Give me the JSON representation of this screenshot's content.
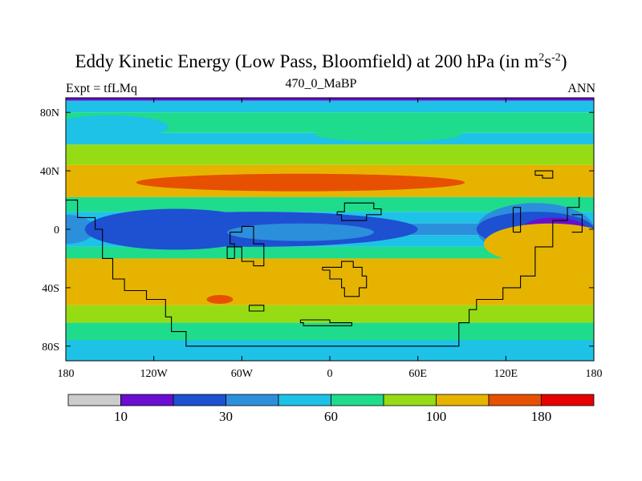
{
  "chart_data": {
    "type": "heatmap",
    "title_main": "Eddy Kinetic Energy (Low Pass, Bloomfield) at 200 hPa (in m",
    "title_sup1": "2",
    "title_mid": "s",
    "title_sup2": "-2",
    "title_end": ")",
    "left_string": "Expt = tfLMq",
    "center_string": "470_0_MaBP",
    "right_string": "ANN",
    "xlim": [
      -180,
      180
    ],
    "ylim": [
      -90,
      90
    ],
    "x_ticks": [
      {
        "value": -180,
        "label": "180"
      },
      {
        "value": -120,
        "label": "120W"
      },
      {
        "value": -60,
        "label": "60W"
      },
      {
        "value": 0,
        "label": "0"
      },
      {
        "value": 60,
        "label": "60E"
      },
      {
        "value": 120,
        "label": "120E"
      },
      {
        "value": 180,
        "label": "180"
      }
    ],
    "y_ticks": [
      {
        "value": 80,
        "label": "80N"
      },
      {
        "value": 40,
        "label": "40N"
      },
      {
        "value": 0,
        "label": "0"
      },
      {
        "value": -40,
        "label": "40S"
      },
      {
        "value": -80,
        "label": "80S"
      }
    ],
    "levels": [
      10,
      20,
      30,
      45,
      60,
      80,
      100,
      140,
      180
    ],
    "colorbar_colors": [
      "#cccccc",
      "#6a0ed2",
      "#1e50d2",
      "#2c8fdc",
      "#1ec2e6",
      "#1edc8c",
      "#96dc14",
      "#e6b400",
      "#e65000",
      "#e60000"
    ],
    "colorbar_labels": [
      {
        "after_level": 1,
        "label": "10"
      },
      {
        "after_level": 3,
        "label": "30"
      },
      {
        "after_level": 5,
        "label": "60"
      },
      {
        "after_level": 7,
        "label": "100"
      },
      {
        "after_level": 9,
        "label": "180"
      }
    ],
    "bands": [
      {
        "lat_from": 90,
        "lat_to": 88,
        "color_index": 1
      },
      {
        "lat_from": 88,
        "lat_to": 80,
        "color_index": 4
      },
      {
        "lat_from": 80,
        "lat_to": 66,
        "color_index": 5
      },
      {
        "lat_from": 66,
        "lat_to": 58,
        "color_index": 4
      },
      {
        "lat_from": 58,
        "lat_to": 44,
        "color_index": 6
      },
      {
        "lat_from": 44,
        "lat_to": 22,
        "color_index": 7
      },
      {
        "lat_from": 22,
        "lat_to": 12,
        "color_index": 5
      },
      {
        "lat_from": 12,
        "lat_to": 4,
        "color_index": 4
      },
      {
        "lat_from": 4,
        "lat_to": -4,
        "color_index": 3
      },
      {
        "lat_from": -4,
        "lat_to": -12,
        "color_index": 4
      },
      {
        "lat_from": -12,
        "lat_to": -20,
        "color_index": 5
      },
      {
        "lat_from": -20,
        "lat_to": -52,
        "color_index": 7
      },
      {
        "lat_from": -52,
        "lat_to": -64,
        "color_index": 6
      },
      {
        "lat_from": -64,
        "lat_to": -76,
        "color_index": 5
      },
      {
        "lat_from": -76,
        "lat_to": -90,
        "color_index": 4
      }
    ],
    "blobs": [
      {
        "lon": -180,
        "lat": 0,
        "rlon": 20,
        "rlat": 10,
        "color_index": 3
      },
      {
        "lon": -50,
        "lat": 0,
        "rlon": 110,
        "rlat": 12,
        "color_index": 2
      },
      {
        "lon": -105,
        "lat": 0,
        "rlon": 62,
        "rlat": 14,
        "color_index": 2
      },
      {
        "lon": -20,
        "lat": -2,
        "rlon": 50,
        "rlat": 6,
        "color_index": 3
      },
      {
        "lon": 140,
        "lat": 0,
        "rlon": 40,
        "rlat": 18,
        "color_index": 3
      },
      {
        "lon": 140,
        "lat": 0,
        "rlon": 40,
        "rlat": 12,
        "color_index": 2
      },
      {
        "lon": 153,
        "lat": 0,
        "rlon": 22,
        "rlat": 8,
        "color_index": 1
      },
      {
        "lon": -20,
        "lat": 32,
        "rlon": 112,
        "rlat": 6,
        "color_index": 8
      },
      {
        "lon": -75,
        "lat": -48,
        "rlon": 9,
        "rlat": 3,
        "color_index": 8
      },
      {
        "lon": 150,
        "lat": -10,
        "rlon": 45,
        "rlat": 14,
        "color_index": 7
      },
      {
        "lon": -150,
        "lat": 70,
        "rlon": 40,
        "rlat": 8,
        "color_index": 4
      },
      {
        "lon": 40,
        "lat": 65,
        "rlon": 50,
        "rlat": 5,
        "color_index": 5
      }
    ],
    "land_mask_outlines": [
      [
        [
          -180,
          20
        ],
        [
          -172,
          20
        ],
        [
          -172,
          8
        ],
        [
          -160,
          8
        ],
        [
          -160,
          0
        ],
        [
          -155,
          0
        ],
        [
          -155,
          -20
        ],
        [
          -148,
          -20
        ],
        [
          -148,
          -34
        ],
        [
          -140,
          -34
        ],
        [
          -140,
          -42
        ],
        [
          -125,
          -42
        ],
        [
          -125,
          -48
        ],
        [
          -112,
          -48
        ],
        [
          -112,
          -60
        ],
        [
          -108,
          -60
        ],
        [
          -108,
          -70
        ],
        [
          -98,
          -70
        ],
        [
          -98,
          -80
        ],
        [
          88,
          -80
        ],
        [
          88,
          -64
        ],
        [
          95,
          -64
        ],
        [
          95,
          -55
        ],
        [
          100,
          -55
        ],
        [
          100,
          -48
        ],
        [
          118,
          -48
        ],
        [
          118,
          -40
        ],
        [
          130,
          -40
        ],
        [
          130,
          -32
        ],
        [
          140,
          -32
        ],
        [
          140,
          -12
        ],
        [
          152,
          -12
        ],
        [
          152,
          6
        ],
        [
          162,
          6
        ],
        [
          162,
          15
        ],
        [
          170,
          15
        ],
        [
          170,
          22
        ]
      ],
      [
        [
          -60,
          2
        ],
        [
          -52,
          2
        ],
        [
          -52,
          -10
        ],
        [
          -45,
          -10
        ],
        [
          -45,
          -25
        ],
        [
          -52,
          -25
        ],
        [
          -52,
          -22
        ],
        [
          -60,
          -22
        ],
        [
          -60,
          -12
        ],
        [
          -70,
          -12
        ],
        [
          -70,
          -20
        ],
        [
          -65,
          -20
        ],
        [
          -65,
          -10
        ],
        [
          -68,
          -10
        ],
        [
          -68,
          -2
        ],
        [
          -60,
          -2
        ],
        [
          -60,
          2
        ]
      ],
      [
        [
          5,
          12
        ],
        [
          10,
          12
        ],
        [
          10,
          18
        ],
        [
          30,
          18
        ],
        [
          30,
          14
        ],
        [
          35,
          14
        ],
        [
          35,
          10
        ],
        [
          25,
          10
        ],
        [
          25,
          6
        ],
        [
          8,
          6
        ],
        [
          8,
          10
        ],
        [
          5,
          10
        ],
        [
          5,
          12
        ]
      ],
      [
        [
          -5,
          -28
        ],
        [
          0,
          -28
        ],
        [
          0,
          -34
        ],
        [
          8,
          -34
        ],
        [
          8,
          -40
        ],
        [
          10,
          -40
        ],
        [
          10,
          -46
        ],
        [
          20,
          -46
        ],
        [
          20,
          -40
        ],
        [
          25,
          -40
        ],
        [
          25,
          -32
        ],
        [
          22,
          -32
        ],
        [
          22,
          -26
        ],
        [
          16,
          -26
        ],
        [
          16,
          -22
        ],
        [
          8,
          -22
        ],
        [
          8,
          -26
        ],
        [
          -5,
          -26
        ],
        [
          -5,
          -28
        ]
      ],
      [
        [
          -20,
          -62
        ],
        [
          -20,
          -64
        ],
        [
          -18,
          -64
        ],
        [
          -18,
          -66
        ],
        [
          15,
          -66
        ],
        [
          15,
          -64
        ],
        [
          0,
          -64
        ],
        [
          0,
          -62
        ],
        [
          -20,
          -62
        ]
      ],
      [
        [
          -55,
          -52
        ],
        [
          -55,
          -56
        ],
        [
          -45,
          -56
        ],
        [
          -45,
          -52
        ],
        [
          -55,
          -52
        ]
      ],
      [
        [
          140,
          37
        ],
        [
          145,
          37
        ],
        [
          145,
          35
        ],
        [
          152,
          35
        ],
        [
          152,
          40
        ],
        [
          140,
          40
        ],
        [
          140,
          37
        ]
      ],
      [
        [
          125,
          15
        ],
        [
          130,
          15
        ],
        [
          130,
          -2
        ],
        [
          125,
          -2
        ],
        [
          125,
          15
        ]
      ],
      [
        [
          165,
          10
        ],
        [
          172,
          10
        ],
        [
          172,
          -2
        ],
        [
          165,
          -2
        ]
      ]
    ]
  }
}
